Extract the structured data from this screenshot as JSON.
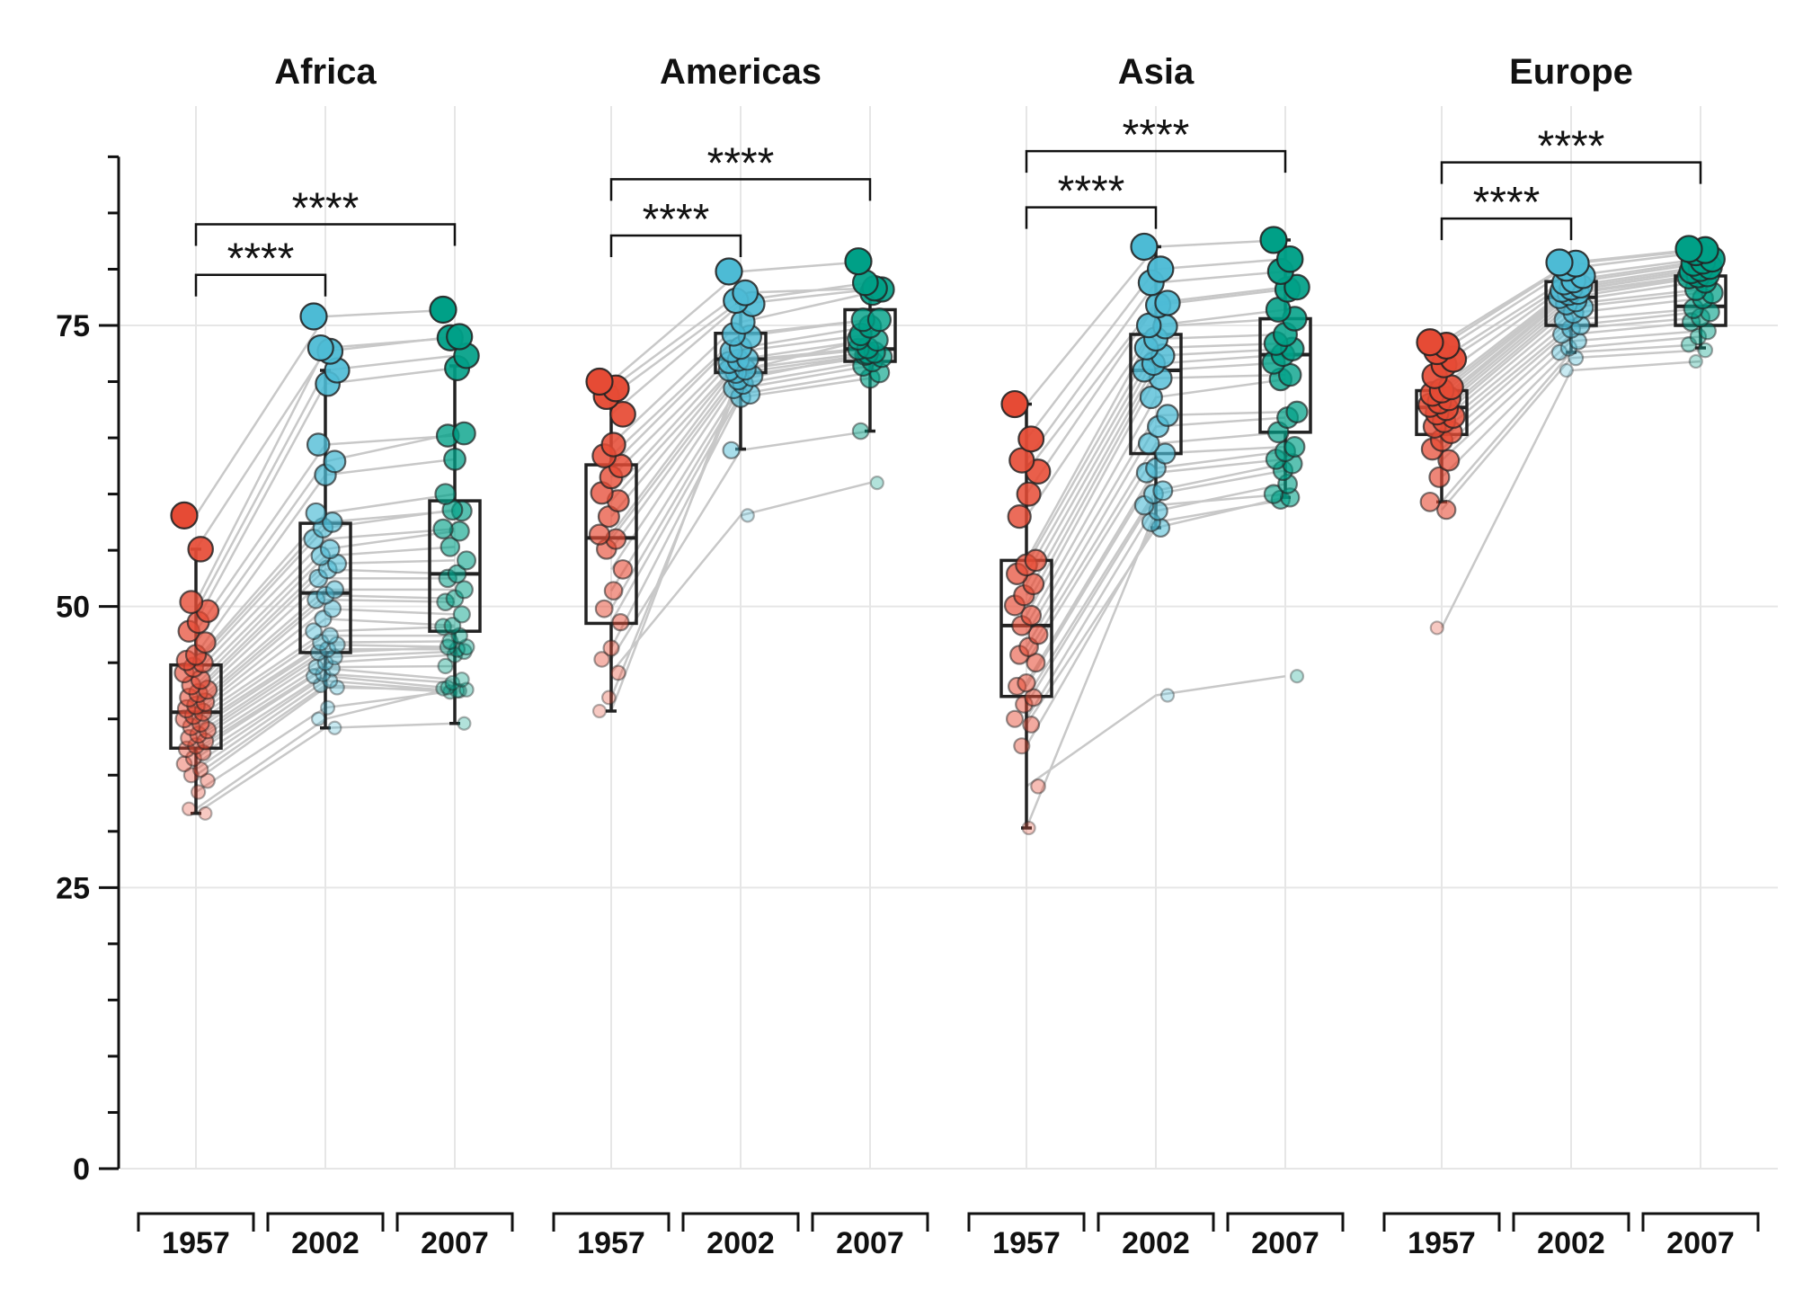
{
  "chart_data": {
    "type": "scatter",
    "panels": [
      "Africa",
      "Americas",
      "Asia",
      "Europe"
    ],
    "groups": [
      "1957",
      "2002",
      "2007"
    ],
    "ylim": [
      0,
      90
    ],
    "yticks": [
      0,
      25,
      50,
      75
    ],
    "grid": true,
    "colors": {
      "1957": "#e64b35",
      "2002": "#4dbbd5",
      "2007": "#00a087",
      "line": "#c8c8c8"
    },
    "comparisons": [
      {
        "panel": "Africa",
        "pair": [
          "1957",
          "2002"
        ],
        "label": "****",
        "y": 79.5
      },
      {
        "panel": "Africa",
        "pair": [
          "1957",
          "2007"
        ],
        "label": "****",
        "y": 84
      },
      {
        "panel": "Americas",
        "pair": [
          "1957",
          "2002"
        ],
        "label": "****",
        "y": 83
      },
      {
        "panel": "Americas",
        "pair": [
          "1957",
          "2007"
        ],
        "label": "****",
        "y": 88
      },
      {
        "panel": "Asia",
        "pair": [
          "1957",
          "2002"
        ],
        "label": "****",
        "y": 85.5
      },
      {
        "panel": "Asia",
        "pair": [
          "1957",
          "2007"
        ],
        "label": "****",
        "y": 90.5
      },
      {
        "panel": "Europe",
        "pair": [
          "1957",
          "2002"
        ],
        "label": "****",
        "y": 84.5
      },
      {
        "panel": "Europe",
        "pair": [
          "1957",
          "2007"
        ],
        "label": "****",
        "y": 89.5
      }
    ],
    "boxes": [
      {
        "panel": "Africa",
        "group": "1957",
        "q1": 37.4,
        "median": 40.6,
        "q3": 44.8,
        "lo": 31.6,
        "hi": 55.1
      },
      {
        "panel": "Africa",
        "group": "2002",
        "q1": 45.9,
        "median": 51.2,
        "q3": 57.4,
        "lo": 39.2,
        "hi": 71.0
      },
      {
        "panel": "Africa",
        "group": "2007",
        "q1": 47.8,
        "median": 52.9,
        "q3": 59.4,
        "lo": 39.6,
        "hi": 71.4
      },
      {
        "panel": "Americas",
        "group": "1957",
        "q1": 48.5,
        "median": 56.1,
        "q3": 62.6,
        "lo": 40.7,
        "hi": 69.5
      },
      {
        "panel": "Americas",
        "group": "2002",
        "q1": 70.8,
        "median": 72.0,
        "q3": 74.3,
        "lo": 64.0,
        "hi": 77.0
      },
      {
        "panel": "Americas",
        "group": "2007",
        "q1": 71.8,
        "median": 72.9,
        "q3": 76.4,
        "lo": 65.6,
        "hi": 78.3
      },
      {
        "panel": "Asia",
        "group": "1957",
        "q1": 42.0,
        "median": 48.3,
        "q3": 54.1,
        "lo": 30.3,
        "hi": 68.0
      },
      {
        "panel": "Asia",
        "group": "2002",
        "q1": 63.6,
        "median": 71.0,
        "q3": 74.2,
        "lo": 57.0,
        "hi": 82.0
      },
      {
        "panel": "Asia",
        "group": "2007",
        "q1": 65.5,
        "median": 72.4,
        "q3": 75.6,
        "lo": 59.7,
        "hi": 82.6
      },
      {
        "panel": "Europe",
        "group": "1957",
        "q1": 65.3,
        "median": 67.7,
        "q3": 69.2,
        "lo": 59.3,
        "hi": 73.5
      },
      {
        "panel": "Europe",
        "group": "2002",
        "q1": 75.0,
        "median": 77.5,
        "q3": 78.9,
        "lo": 72.6,
        "hi": 80.6
      },
      {
        "panel": "Europe",
        "group": "2007",
        "q1": 75.0,
        "median": 76.7,
        "q3": 79.4,
        "lo": 73.0,
        "hi": 81.8
      }
    ],
    "series": [
      {
        "panel": "Africa",
        "values": [
          [
            58.1,
            75.8,
            76.4
          ],
          [
            55.1,
            72.7,
            74.0
          ],
          [
            50.4,
            73.0,
            73.9
          ],
          [
            49.6,
            71.0,
            72.3
          ],
          [
            48.6,
            69.8,
            71.2
          ],
          [
            47.8,
            64.4,
            65.2
          ],
          [
            46.8,
            62.9,
            65.4
          ],
          [
            45.7,
            61.7,
            63.1
          ],
          [
            45.2,
            58.3,
            60.0
          ],
          [
            45.0,
            57.5,
            58.5
          ],
          [
            44.6,
            57.0,
            58.6
          ],
          [
            44.1,
            56.0,
            56.9
          ],
          [
            43.5,
            55.1,
            56.7
          ],
          [
            43.0,
            54.5,
            55.3
          ],
          [
            42.6,
            53.8,
            54.1
          ],
          [
            42.3,
            53.3,
            52.9
          ],
          [
            41.9,
            52.5,
            52.5
          ],
          [
            41.5,
            51.5,
            51.5
          ],
          [
            41.2,
            51.0,
            50.7
          ],
          [
            40.9,
            50.6,
            50.4
          ],
          [
            40.6,
            49.8,
            49.3
          ],
          [
            40.3,
            48.9,
            48.3
          ],
          [
            40.0,
            47.8,
            48.2
          ],
          [
            39.6,
            47.4,
            47.4
          ],
          [
            39.3,
            46.8,
            46.9
          ],
          [
            39.0,
            46.6,
            46.4
          ],
          [
            38.6,
            46.2,
            46.2
          ],
          [
            38.3,
            45.9,
            46.4
          ],
          [
            38.0,
            45.5,
            46.0
          ],
          [
            37.6,
            45.0,
            45.7
          ],
          [
            37.3,
            44.6,
            44.7
          ],
          [
            37.0,
            44.5,
            43.5
          ],
          [
            36.5,
            44.0,
            43.2
          ],
          [
            36.0,
            43.8,
            42.7
          ],
          [
            35.5,
            43.4,
            42.5
          ],
          [
            35.0,
            43.0,
            42.4
          ],
          [
            34.5,
            42.8,
            42.6
          ],
          [
            33.5,
            41.0,
            42.5
          ],
          [
            32.0,
            40.0,
            42.8
          ],
          [
            31.6,
            39.2,
            39.6
          ]
        ]
      },
      {
        "panel": "Americas",
        "values": [
          [
            70.0,
            79.8,
            80.7
          ],
          [
            69.4,
            77.9,
            78.3
          ],
          [
            68.7,
            77.2,
            78.8
          ],
          [
            67.1,
            76.9,
            78.2
          ],
          [
            64.4,
            75.3,
            77.9
          ],
          [
            63.4,
            74.2,
            75.5
          ],
          [
            62.5,
            74.0,
            75.5
          ],
          [
            61.5,
            73.0,
            74.9
          ],
          [
            60.1,
            72.7,
            74.2
          ],
          [
            59.4,
            72.0,
            73.7
          ],
          [
            58.0,
            71.9,
            73.0
          ],
          [
            56.4,
            71.7,
            72.9
          ],
          [
            56.0,
            71.1,
            72.6
          ],
          [
            55.1,
            70.8,
            72.4
          ],
          [
            53.3,
            70.5,
            72.2
          ],
          [
            51.4,
            69.8,
            71.8
          ],
          [
            49.8,
            69.4,
            71.4
          ],
          [
            48.6,
            68.9,
            70.8
          ],
          [
            46.3,
            68.6,
            70.3
          ],
          [
            45.3,
            63.9,
            65.6
          ],
          [
            44.1,
            58.1,
            61.0
          ],
          [
            41.9,
            70.2,
            72.5
          ],
          [
            40.7,
            71.0,
            73.8
          ]
        ]
      },
      {
        "panel": "Asia",
        "values": [
          [
            68.0,
            82.0,
            82.6
          ],
          [
            64.9,
            80.0,
            80.9
          ],
          [
            63.0,
            78.8,
            79.8
          ],
          [
            62.0,
            77.0,
            78.4
          ],
          [
            60.0,
            76.8,
            78.2
          ],
          [
            58.0,
            75.0,
            76.4
          ],
          [
            54.1,
            74.9,
            75.6
          ],
          [
            53.7,
            73.8,
            74.2
          ],
          [
            52.9,
            73.0,
            73.4
          ],
          [
            52.0,
            72.3,
            72.9
          ],
          [
            51.0,
            71.6,
            72.4
          ],
          [
            50.1,
            71.0,
            71.7
          ],
          [
            49.2,
            70.3,
            70.6
          ],
          [
            48.3,
            68.6,
            70.2
          ],
          [
            47.5,
            67.0,
            67.3
          ],
          [
            46.4,
            66.0,
            66.8
          ],
          [
            45.7,
            64.5,
            65.5
          ],
          [
            45.0,
            63.6,
            64.2
          ],
          [
            43.2,
            62.3,
            63.8
          ],
          [
            42.9,
            61.9,
            63.1
          ],
          [
            41.9,
            60.3,
            62.7
          ],
          [
            41.3,
            60.0,
            62.1
          ],
          [
            40.0,
            59.0,
            60.0
          ],
          [
            39.5,
            57.0,
            59.7
          ],
          [
            37.6,
            57.5,
            59.5
          ],
          [
            34.0,
            42.1,
            43.8
          ],
          [
            30.3,
            58.5,
            60.9
          ]
        ]
      },
      {
        "panel": "Europe",
        "values": [
          [
            73.5,
            80.6,
            81.8
          ],
          [
            73.2,
            80.5,
            81.7
          ],
          [
            72.7,
            80.1,
            81.5
          ],
          [
            72.0,
            79.4,
            80.9
          ],
          [
            71.5,
            79.0,
            80.7
          ],
          [
            70.5,
            78.8,
            80.5
          ],
          [
            69.5,
            78.5,
            80.2
          ],
          [
            69.2,
            78.3,
            80.0
          ],
          [
            68.9,
            78.1,
            79.8
          ],
          [
            68.5,
            77.9,
            79.5
          ],
          [
            68.2,
            77.8,
            79.4
          ],
          [
            67.9,
            77.5,
            79.3
          ],
          [
            67.6,
            77.2,
            78.9
          ],
          [
            67.2,
            76.9,
            78.2
          ],
          [
            66.9,
            76.6,
            77.9
          ],
          [
            66.5,
            76.1,
            77.4
          ],
          [
            66.0,
            75.5,
            76.5
          ],
          [
            65.5,
            75.0,
            76.2
          ],
          [
            64.8,
            74.7,
            75.7
          ],
          [
            64.0,
            74.2,
            75.3
          ],
          [
            63.0,
            73.6,
            74.5
          ],
          [
            61.5,
            73.0,
            74.0
          ],
          [
            59.3,
            72.6,
            73.3
          ],
          [
            58.6,
            72.1,
            72.8
          ],
          [
            48.1,
            71.0,
            71.8
          ]
        ]
      }
    ]
  }
}
